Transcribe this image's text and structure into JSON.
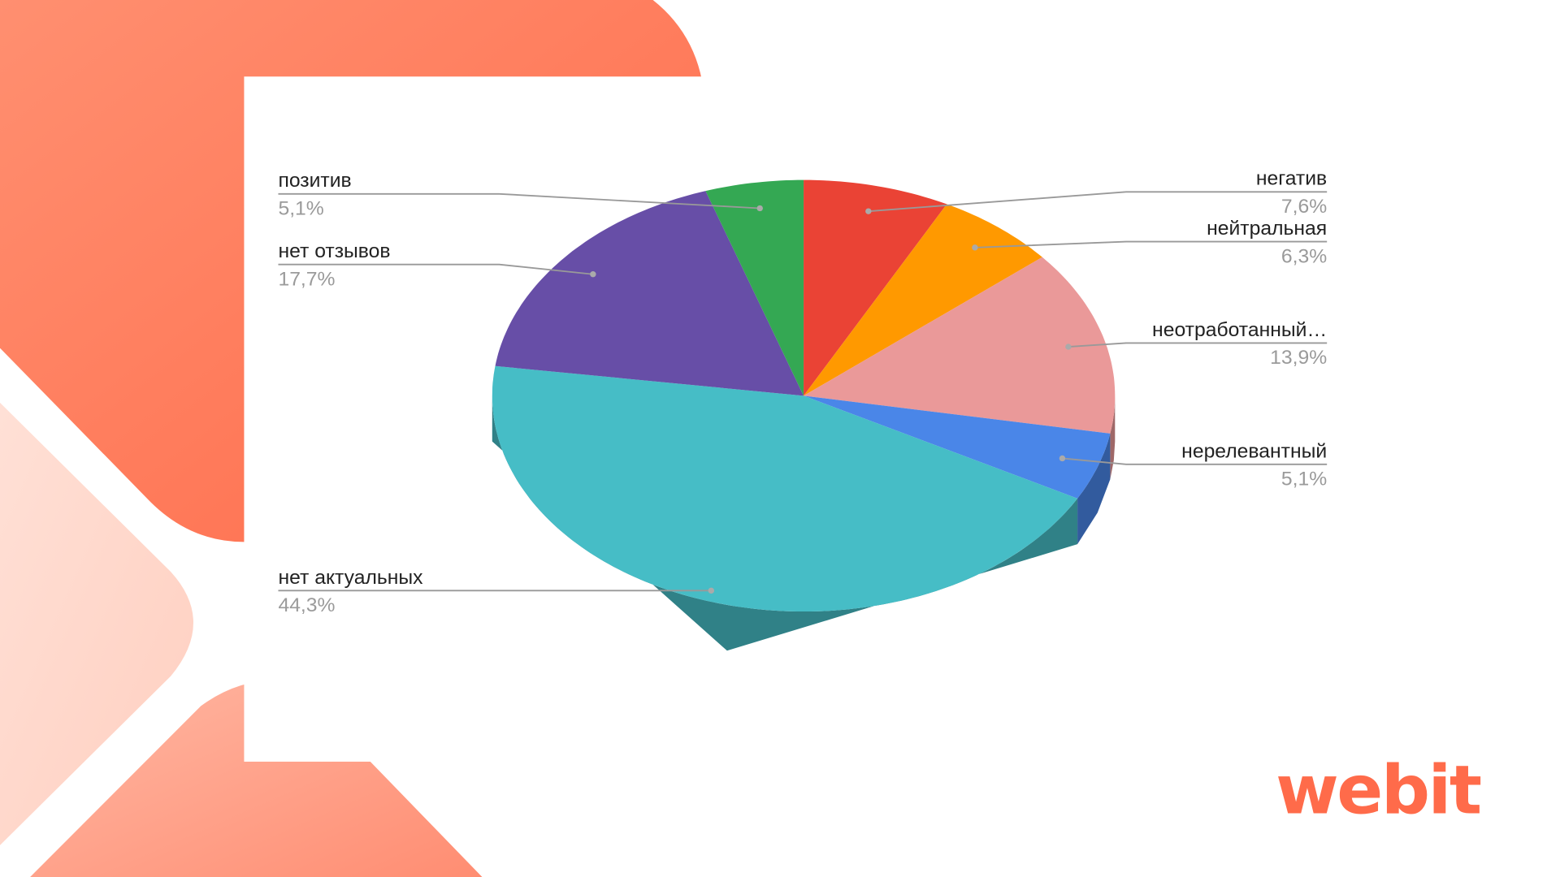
{
  "brand": {
    "logo_text": "webit",
    "accent": "#FF6B4A"
  },
  "chart_data": {
    "type": "pie",
    "style": "3d",
    "start": "top",
    "direction": "clockwise",
    "legend": "none",
    "slices": [
      {
        "label": "негатив",
        "value": 7.6,
        "value_label": "7,6%",
        "color": "#EA4335",
        "side": "right"
      },
      {
        "label": "нейтральная",
        "value": 6.3,
        "value_label": "6,3%",
        "color": "#FF9900",
        "side": "right"
      },
      {
        "label": "неотработанный…",
        "value": 13.9,
        "value_label": "13,9%",
        "color": "#EA9999",
        "side": "right"
      },
      {
        "label": "нерелевантный",
        "value": 5.1,
        "value_label": "5,1%",
        "color": "#4A86E8",
        "side": "right"
      },
      {
        "label": "нет актуальных",
        "value": 44.3,
        "value_label": "44,3%",
        "color": "#46BDC6",
        "side": "left"
      },
      {
        "label": "нет отзывов",
        "value": 17.7,
        "value_label": "17,7%",
        "color": "#674EA7",
        "side": "left"
      },
      {
        "label": "позитив",
        "value": 5.1,
        "value_label": "5,1%",
        "color": "#34A853",
        "side": "left"
      }
    ]
  }
}
